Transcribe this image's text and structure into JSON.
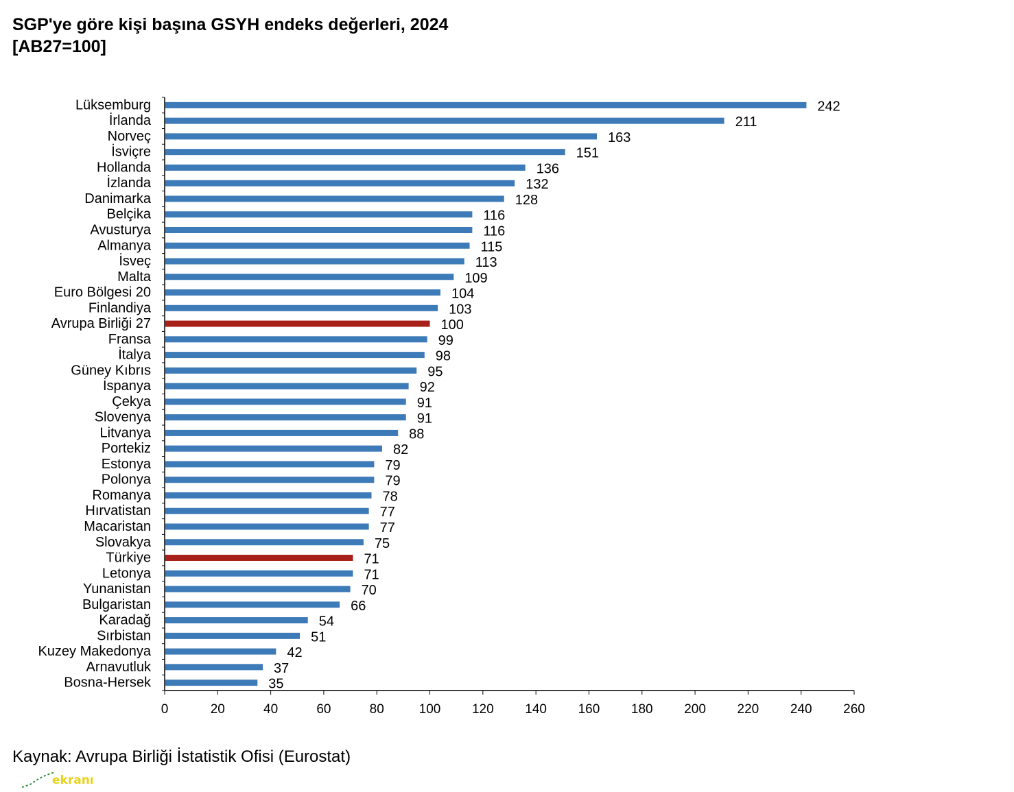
{
  "chart_data": {
    "type": "bar",
    "orientation": "horizontal",
    "title": "SGP'ye göre kişi başına GSYH endeks değerleri, 2024",
    "subtitle": "[AB27=100]",
    "categories": [
      "Lüksemburg",
      "İrlanda",
      "Norveç",
      "İsviçre",
      "Hollanda",
      "İzlanda",
      "Danimarka",
      "Belçika",
      "Avusturya",
      "Almanya",
      "İsveç",
      "Malta",
      "Euro Bölgesi 20",
      "Finlandiya",
      "Avrupa Birliği 27",
      "Fransa",
      "İtalya",
      "Güney Kıbrıs",
      "İspanya",
      "Çekya",
      "Slovenya",
      "Litvanya",
      "Portekiz",
      "Estonya",
      "Polonya",
      "Romanya",
      "Hırvatistan",
      "Macaristan",
      "Slovakya",
      "Türkiye",
      "Letonya",
      "Yunanistan",
      "Bulgaristan",
      "Karadağ",
      "Sırbistan",
      "Kuzey Makedonya",
      "Arnavutluk",
      "Bosna-Hersek"
    ],
    "values": [
      242,
      211,
      163,
      151,
      136,
      132,
      128,
      116,
      116,
      115,
      113,
      109,
      104,
      103,
      100,
      99,
      98,
      95,
      92,
      91,
      91,
      88,
      82,
      79,
      79,
      78,
      77,
      77,
      75,
      71,
      71,
      70,
      66,
      54,
      51,
      42,
      37,
      35
    ],
    "highlighted": [
      "Avrupa Birliği 27",
      "Türkiye"
    ],
    "xlim": [
      0,
      260
    ],
    "xticks": [
      0,
      20,
      40,
      60,
      80,
      100,
      120,
      140,
      160,
      180,
      200,
      220,
      240,
      260
    ],
    "bar_color": "#3d7ab8",
    "highlight_color": "#a8201a",
    "grid": false,
    "legend": "none"
  },
  "source": "Kaynak: Avrupa Birliği İstatistik Ofisi (Eurostat)",
  "logo_text": "ekranı"
}
